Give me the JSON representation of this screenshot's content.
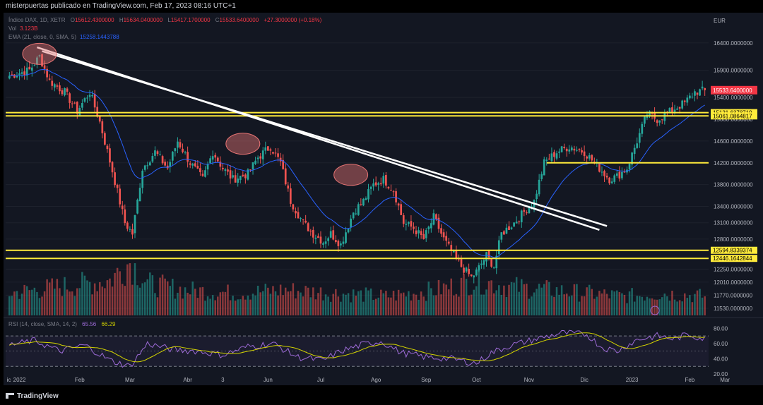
{
  "header": {
    "text": "misterpuertas publicado en TradingView.com, Feb 17, 2023 08:16 UTC+1"
  },
  "legend": {
    "symbol": "Índice DAX, 1D, XETR",
    "o_label": "O",
    "o": "15612.4300000",
    "h_label": "H",
    "h": "15634.0400000",
    "l_label": "L",
    "l": "15417.1700000",
    "c_label": "C",
    "c": "15533.6400000",
    "change": "+27.3000000 (+0.18%)",
    "vol_label": "Vol",
    "vol": "3.123B",
    "ema_label": "EMA (21, close, 0, SMA, 5)",
    "ema": "15258.1443788"
  },
  "rsi_legend": {
    "label": "RSI (14, close, SMA, 14, 2)",
    "v1": "65.56",
    "v2": "66.29"
  },
  "colors": {
    "up": "#26a69a",
    "down": "#ef5350",
    "ema": "#2962ff",
    "level": "#ffeb3b",
    "rsi": "#9c6ad6",
    "rsi_ma": "#d4d400",
    "highlight": "#e57373"
  },
  "chart_data": [
    {
      "type": "candlestick",
      "currency": "EUR",
      "y_range": [
        11400,
        16800
      ],
      "y_ticks": [
        "16400.0000000",
        "15900.0000000",
        "15400.0000000",
        "15000.0000000",
        "14600.0000000",
        "14200.0000000",
        "13800.0000000",
        "13400.0000000",
        "13100.0000000",
        "12800.0000000",
        "12250.0000000",
        "12010.0000000",
        "11770.0000000",
        "11530.0000000"
      ],
      "y_tick_values": [
        16400,
        15900,
        15400,
        15000,
        14600,
        14200,
        13800,
        13400,
        13100,
        12800,
        12250,
        12010,
        11770,
        11530
      ],
      "x_ticks": [
        {
          "label": "ic",
          "idx": -1
        },
        {
          "label": "2022",
          "idx": 4
        },
        {
          "label": "Feb",
          "idx": 28
        },
        {
          "label": "Mar",
          "idx": 48
        },
        {
          "label": "Abr",
          "idx": 71
        },
        {
          "label": "3",
          "idx": 85
        },
        {
          "label": "Jun",
          "idx": 103
        },
        {
          "label": "Jul",
          "idx": 124
        },
        {
          "label": "Ago",
          "idx": 146
        },
        {
          "label": "Sep",
          "idx": 166
        },
        {
          "label": "Oct",
          "idx": 186
        },
        {
          "label": "Nov",
          "idx": 207
        },
        {
          "label": "Dic",
          "idx": 229
        },
        {
          "label": "2023",
          "idx": 248
        },
        {
          "label": "Feb",
          "idx": 271
        },
        {
          "label": "Mar",
          "idx": 285
        }
      ],
      "close_anchors": [
        [
          0,
          15800
        ],
        [
          8,
          15900
        ],
        [
          12,
          16150
        ],
        [
          16,
          15700
        ],
        [
          22,
          15500
        ],
        [
          27,
          15150
        ],
        [
          32,
          15500
        ],
        [
          36,
          14950
        ],
        [
          41,
          14050
        ],
        [
          46,
          13100
        ],
        [
          49,
          12900
        ],
        [
          53,
          14100
        ],
        [
          58,
          14400
        ],
        [
          63,
          14100
        ],
        [
          67,
          14600
        ],
        [
          72,
          14200
        ],
        [
          77,
          13900
        ],
        [
          81,
          14400
        ],
        [
          85,
          14100
        ],
        [
          89,
          13900
        ],
        [
          95,
          14000
        ],
        [
          99,
          14300
        ],
        [
          104,
          14500
        ],
        [
          108,
          14200
        ],
        [
          112,
          13500
        ],
        [
          117,
          13100
        ],
        [
          121,
          12900
        ],
        [
          125,
          12750
        ],
        [
          128,
          12900
        ],
        [
          132,
          12700
        ],
        [
          137,
          13300
        ],
        [
          141,
          13500
        ],
        [
          145,
          13800
        ],
        [
          149,
          13900
        ],
        [
          153,
          13700
        ],
        [
          157,
          13100
        ],
        [
          161,
          13000
        ],
        [
          165,
          12800
        ],
        [
          169,
          13200
        ],
        [
          173,
          12800
        ],
        [
          177,
          12500
        ],
        [
          180,
          12300
        ],
        [
          184,
          12100
        ],
        [
          186,
          12200
        ],
        [
          190,
          12500
        ],
        [
          193,
          12300
        ],
        [
          196,
          12900
        ],
        [
          201,
          13100
        ],
        [
          205,
          13300
        ],
        [
          209,
          13500
        ],
        [
          213,
          14200
        ],
        [
          218,
          14400
        ],
        [
          223,
          14500
        ],
        [
          229,
          14400
        ],
        [
          235,
          14100
        ],
        [
          239,
          13900
        ],
        [
          242,
          13950
        ],
        [
          246,
          14100
        ],
        [
          250,
          14600
        ],
        [
          254,
          15100
        ],
        [
          258,
          15000
        ],
        [
          262,
          15100
        ],
        [
          265,
          15200
        ],
        [
          269,
          15300
        ],
        [
          273,
          15500
        ],
        [
          277,
          15533
        ]
      ],
      "volume_anchors": [
        [
          0,
          0.35
        ],
        [
          20,
          0.45
        ],
        [
          40,
          0.55
        ],
        [
          48,
          0.85
        ],
        [
          55,
          0.5
        ],
        [
          70,
          0.4
        ],
        [
          90,
          0.35
        ],
        [
          110,
          0.4
        ],
        [
          130,
          0.35
        ],
        [
          150,
          0.3
        ],
        [
          170,
          0.4
        ],
        [
          186,
          0.55
        ],
        [
          200,
          0.45
        ],
        [
          215,
          0.4
        ],
        [
          230,
          0.35
        ],
        [
          245,
          0.3
        ],
        [
          260,
          0.35
        ],
        [
          277,
          0.3
        ]
      ],
      "volume_last": "3.123B",
      "ema_period": 21,
      "ema_last": "15258.1443788",
      "horizontal_levels": [
        {
          "value": 15121.6378719,
          "label": "15121.6378719",
          "x_start_idx": -1
        },
        {
          "value": 15061.0864817,
          "label": "15061.0864817",
          "x_start_idx": -1
        },
        {
          "value": 14200,
          "label": "",
          "x_start_idx": 214
        },
        {
          "value": 12594.8339374,
          "label": "12594.8339374",
          "x_start_idx": -1
        },
        {
          "value": 12446.1642844,
          "label": "12446.1642844",
          "x_start_idx": -1
        }
      ],
      "trendlines": [
        {
          "from": [
            13,
            16250
          ],
          "to": [
            238,
            13040
          ]
        },
        {
          "from": [
            11,
            16320
          ],
          "to": [
            235,
            12970
          ]
        }
      ],
      "highlight_points": [
        [
          12,
          16200
        ],
        [
          93,
          14550
        ],
        [
          136,
          13980
        ]
      ],
      "last_price_label": "15533.6400000"
    },
    {
      "type": "line",
      "indicator": "RSI",
      "y_range": [
        20,
        85
      ],
      "y_ticks": [
        "80.00",
        "60.00",
        "40.00",
        "20.00"
      ],
      "y_tick_values": [
        80,
        60,
        40,
        20
      ],
      "bands": [
        70,
        30
      ],
      "rsi_anchors": [
        [
          0,
          58
        ],
        [
          10,
          64
        ],
        [
          20,
          50
        ],
        [
          30,
          58
        ],
        [
          40,
          38
        ],
        [
          48,
          30
        ],
        [
          55,
          60
        ],
        [
          65,
          52
        ],
        [
          75,
          50
        ],
        [
          85,
          45
        ],
        [
          95,
          56
        ],
        [
          105,
          60
        ],
        [
          115,
          42
        ],
        [
          125,
          38
        ],
        [
          132,
          50
        ],
        [
          140,
          58
        ],
        [
          148,
          63
        ],
        [
          156,
          48
        ],
        [
          166,
          42
        ],
        [
          176,
          40
        ],
        [
          186,
          34
        ],
        [
          192,
          48
        ],
        [
          200,
          58
        ],
        [
          210,
          66
        ],
        [
          220,
          74
        ],
        [
          230,
          72
        ],
        [
          236,
          55
        ],
        [
          242,
          50
        ],
        [
          250,
          65
        ],
        [
          258,
          70
        ],
        [
          265,
          66
        ],
        [
          270,
          72
        ],
        [
          277,
          66
        ]
      ],
      "rsi_last": "65.56",
      "rsi_ma_last": "66.29"
    }
  ]
}
